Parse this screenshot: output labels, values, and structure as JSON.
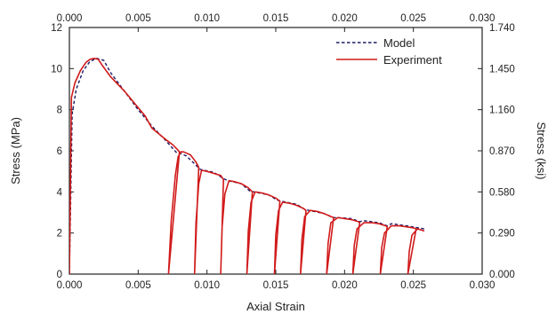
{
  "chart_data": {
    "type": "line",
    "x_bottom": {
      "label": "Axial Strain",
      "range": [
        0.0,
        0.03
      ],
      "ticks": [
        "0.000",
        "0.005",
        "0.010",
        "0.015",
        "0.020",
        "0.025",
        "0.030"
      ]
    },
    "x_top": {
      "label": "",
      "range": [
        0.0,
        0.03
      ],
      "ticks": [
        "0.000",
        "0.005",
        "0.010",
        "0.015",
        "0.020",
        "0.025",
        "0.030"
      ]
    },
    "y_left": {
      "label": "Stress (MPa)",
      "range": [
        0,
        12
      ],
      "ticks": [
        "0",
        "2",
        "4",
        "6",
        "8",
        "10",
        "12"
      ]
    },
    "y_right": {
      "label": "Stress (ksi)",
      "range": [
        0,
        1.74
      ],
      "ticks": [
        "0.000",
        "0.290",
        "0.580",
        "0.870",
        "1.160",
        "1.450",
        "1.740"
      ]
    },
    "grid": false,
    "legend_position": "top-right",
    "series": [
      {
        "name": "Model",
        "color": "#1a1a66",
        "style": "dashed",
        "points": [
          [
            0.0,
            0.0
          ],
          [
            0.0002,
            7.8
          ],
          [
            0.0005,
            9.0
          ],
          [
            0.001,
            9.9
          ],
          [
            0.0015,
            10.35
          ],
          [
            0.002,
            10.5
          ],
          [
            0.0025,
            10.4
          ],
          [
            0.003,
            9.8
          ],
          [
            0.004,
            8.9
          ],
          [
            0.005,
            8.0
          ],
          [
            0.006,
            7.2
          ],
          [
            0.007,
            6.5
          ],
          [
            0.0078,
            5.9
          ],
          [
            0.008,
            5.9
          ],
          [
            0.0085,
            5.75
          ],
          [
            0.0092,
            5.3
          ],
          [
            0.0095,
            5.1
          ],
          [
            0.0105,
            4.95
          ],
          [
            0.0112,
            4.65
          ],
          [
            0.0115,
            4.55
          ],
          [
            0.0125,
            4.4
          ],
          [
            0.0131,
            4.05
          ],
          [
            0.0134,
            4.0
          ],
          [
            0.0145,
            3.85
          ],
          [
            0.0151,
            3.6
          ],
          [
            0.0154,
            3.55
          ],
          [
            0.0165,
            3.4
          ],
          [
            0.0171,
            3.15
          ],
          [
            0.0174,
            3.1
          ],
          [
            0.0185,
            2.95
          ],
          [
            0.0192,
            2.75
          ],
          [
            0.0195,
            2.75
          ],
          [
            0.0205,
            2.7
          ],
          [
            0.0211,
            2.55
          ],
          [
            0.0214,
            2.6
          ],
          [
            0.0225,
            2.5
          ],
          [
            0.0231,
            2.35
          ],
          [
            0.0234,
            2.45
          ],
          [
            0.0245,
            2.35
          ],
          [
            0.0258,
            2.2
          ]
        ]
      },
      {
        "name": "Experiment",
        "color": "#d11a1a",
        "style": "solid",
        "points": [
          [
            0.0,
            0.0
          ],
          [
            0.00015,
            8.6
          ],
          [
            0.0004,
            9.3
          ],
          [
            0.0008,
            9.9
          ],
          [
            0.0012,
            10.3
          ],
          [
            0.0015,
            10.45
          ],
          [
            0.0018,
            10.5
          ],
          [
            0.0021,
            10.45
          ],
          [
            0.0024,
            10.15
          ],
          [
            0.003,
            9.6
          ],
          [
            0.004,
            8.9
          ],
          [
            0.005,
            8.1
          ],
          [
            0.0055,
            7.7
          ],
          [
            0.006,
            7.1
          ],
          [
            0.007,
            6.55
          ],
          [
            0.0075,
            6.3
          ],
          [
            0.0078,
            6.1
          ],
          [
            0.008,
            5.95
          ],
          [
            0.0072,
            0.0
          ],
          [
            0.0074,
            2.6
          ],
          [
            0.0077,
            4.8
          ],
          [
            0.0079,
            5.7
          ],
          [
            0.0081,
            5.95
          ],
          [
            0.0083,
            5.95
          ],
          [
            0.0088,
            5.8
          ],
          [
            0.0092,
            5.45
          ],
          [
            0.0094,
            5.2
          ],
          [
            0.0091,
            0.0
          ],
          [
            0.0092,
            2.5
          ],
          [
            0.0094,
            4.4
          ],
          [
            0.0096,
            5.05
          ],
          [
            0.01,
            5.0
          ],
          [
            0.0105,
            4.9
          ],
          [
            0.011,
            4.8
          ],
          [
            0.0112,
            4.6
          ],
          [
            0.011,
            0.0
          ],
          [
            0.0111,
            2.3
          ],
          [
            0.0113,
            3.9
          ],
          [
            0.0116,
            4.55
          ],
          [
            0.012,
            4.5
          ],
          [
            0.0125,
            4.4
          ],
          [
            0.013,
            4.2
          ],
          [
            0.0133,
            4.0
          ],
          [
            0.0129,
            0.0
          ],
          [
            0.013,
            2.1
          ],
          [
            0.0132,
            3.5
          ],
          [
            0.0135,
            4.0
          ],
          [
            0.014,
            3.95
          ],
          [
            0.0145,
            3.85
          ],
          [
            0.015,
            3.7
          ],
          [
            0.0153,
            3.55
          ],
          [
            0.0149,
            0.0
          ],
          [
            0.015,
            1.9
          ],
          [
            0.0152,
            3.1
          ],
          [
            0.0155,
            3.5
          ],
          [
            0.016,
            3.45
          ],
          [
            0.0165,
            3.35
          ],
          [
            0.017,
            3.2
          ],
          [
            0.0172,
            3.1
          ],
          [
            0.0168,
            0.0
          ],
          [
            0.0169,
            1.7
          ],
          [
            0.0171,
            2.8
          ],
          [
            0.0175,
            3.1
          ],
          [
            0.018,
            3.05
          ],
          [
            0.0185,
            2.95
          ],
          [
            0.019,
            2.8
          ],
          [
            0.0192,
            2.75
          ],
          [
            0.0187,
            0.0
          ],
          [
            0.0188,
            1.5
          ],
          [
            0.019,
            2.5
          ],
          [
            0.0195,
            2.75
          ],
          [
            0.02,
            2.7
          ],
          [
            0.0205,
            2.65
          ],
          [
            0.021,
            2.55
          ],
          [
            0.0211,
            2.5
          ],
          [
            0.0206,
            0.0
          ],
          [
            0.0207,
            1.4
          ],
          [
            0.0209,
            2.2
          ],
          [
            0.0214,
            2.5
          ],
          [
            0.022,
            2.5
          ],
          [
            0.0225,
            2.45
          ],
          [
            0.023,
            2.35
          ],
          [
            0.0231,
            2.3
          ],
          [
            0.0226,
            0.0
          ],
          [
            0.0227,
            1.3
          ],
          [
            0.0229,
            2.0
          ],
          [
            0.0234,
            2.35
          ],
          [
            0.024,
            2.35
          ],
          [
            0.0245,
            2.3
          ],
          [
            0.025,
            2.25
          ],
          [
            0.0252,
            2.2
          ],
          [
            0.0246,
            0.0
          ],
          [
            0.0247,
            1.1
          ],
          [
            0.0249,
            1.9
          ],
          [
            0.0253,
            2.2
          ],
          [
            0.0258,
            2.1
          ]
        ]
      }
    ]
  }
}
